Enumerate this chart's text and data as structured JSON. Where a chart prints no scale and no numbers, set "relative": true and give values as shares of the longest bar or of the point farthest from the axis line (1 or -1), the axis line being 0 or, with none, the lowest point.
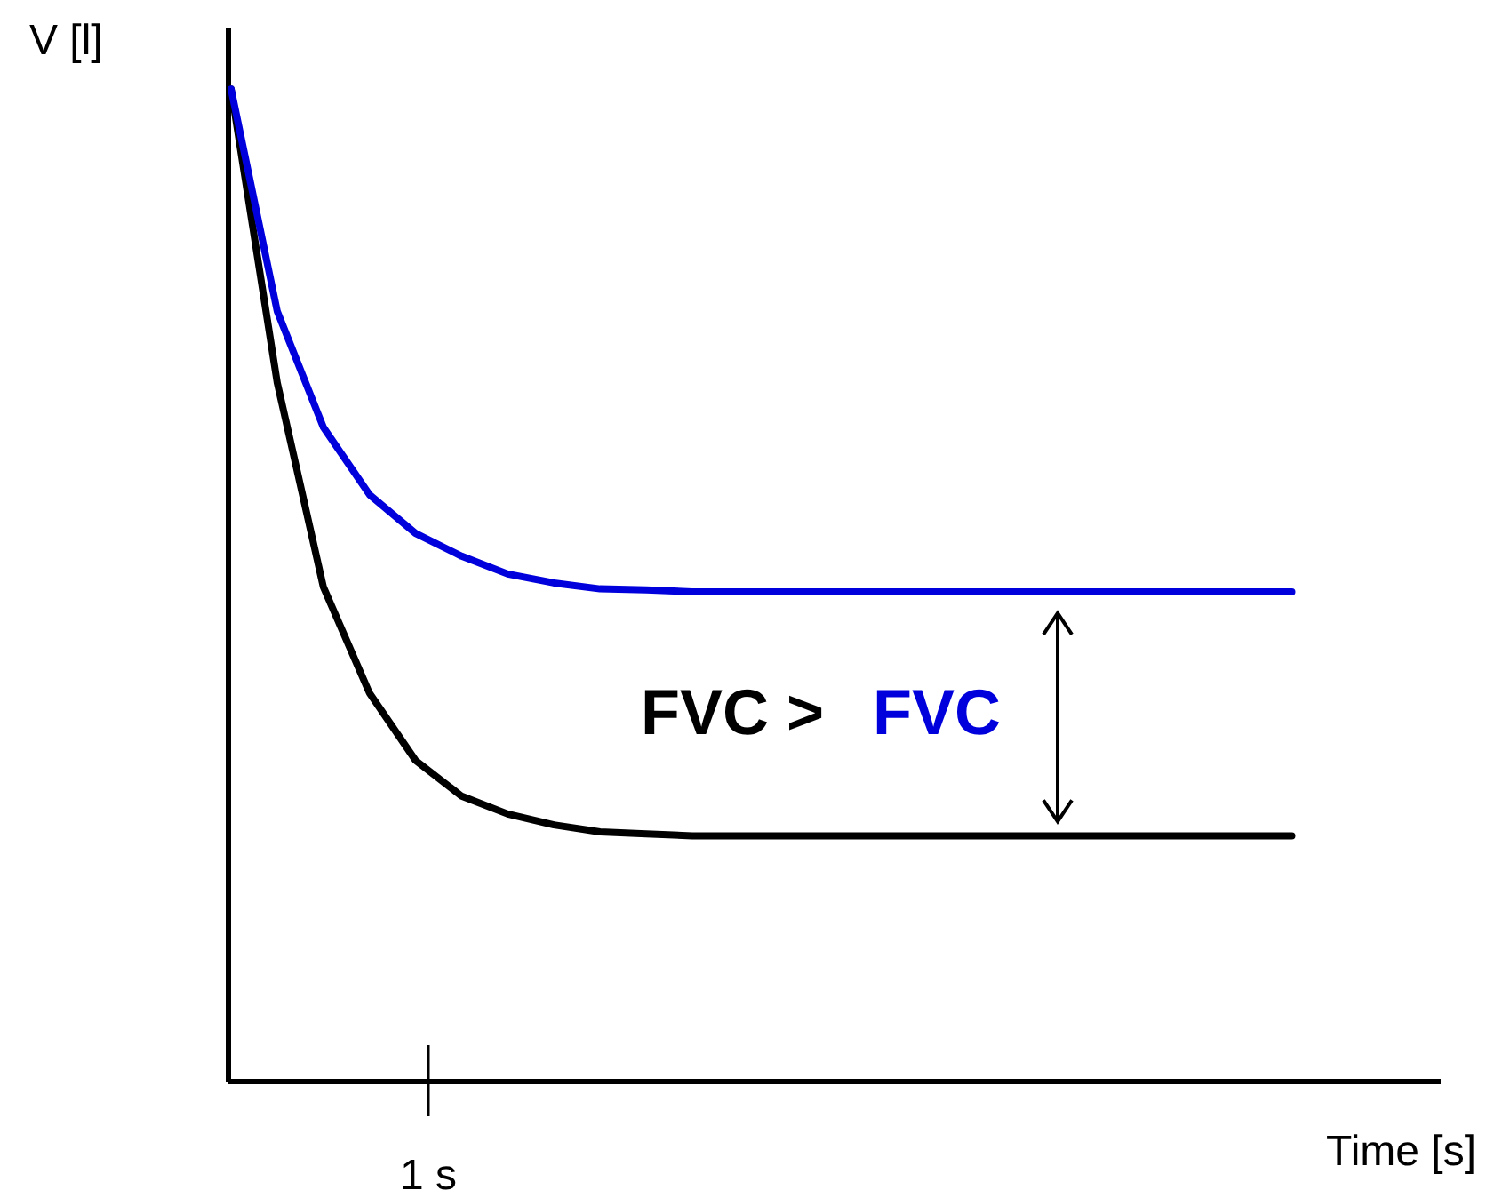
{
  "chart_data": {
    "type": "line",
    "relative": true,
    "xlabel": "Time [s]",
    "ylabel": "V [l]",
    "categories": [
      null,
      null,
      null,
      null,
      null,
      null,
      null,
      null,
      null,
      null,
      null,
      null,
      null,
      null,
      null,
      null,
      null,
      null,
      null,
      null,
      null,
      null,
      null,
      null
    ],
    "series": [
      {
        "color": "#000000",
        "values": [
          1.0,
          0.704,
          0.498,
          0.391,
          0.323,
          0.287,
          0.269,
          0.258,
          0.251,
          0.249,
          0.247,
          0.247,
          0.247,
          0.247,
          0.247,
          0.247,
          0.247,
          0.247,
          0.247,
          0.247,
          0.247,
          0.247,
          0.247,
          0.247
        ]
      },
      {
        "color": "#0000dd",
        "values": [
          1.0,
          0.776,
          0.659,
          0.591,
          0.552,
          0.529,
          0.511,
          0.502,
          0.496,
          0.495,
          0.493,
          0.493,
          0.493,
          0.493,
          0.493,
          0.493,
          0.493,
          0.493,
          0.493,
          0.493,
          0.493,
          0.493,
          0.493,
          0.493
        ]
      }
    ],
    "annotations": [
      "FVC >",
      "FVC",
      "1 s"
    ]
  }
}
